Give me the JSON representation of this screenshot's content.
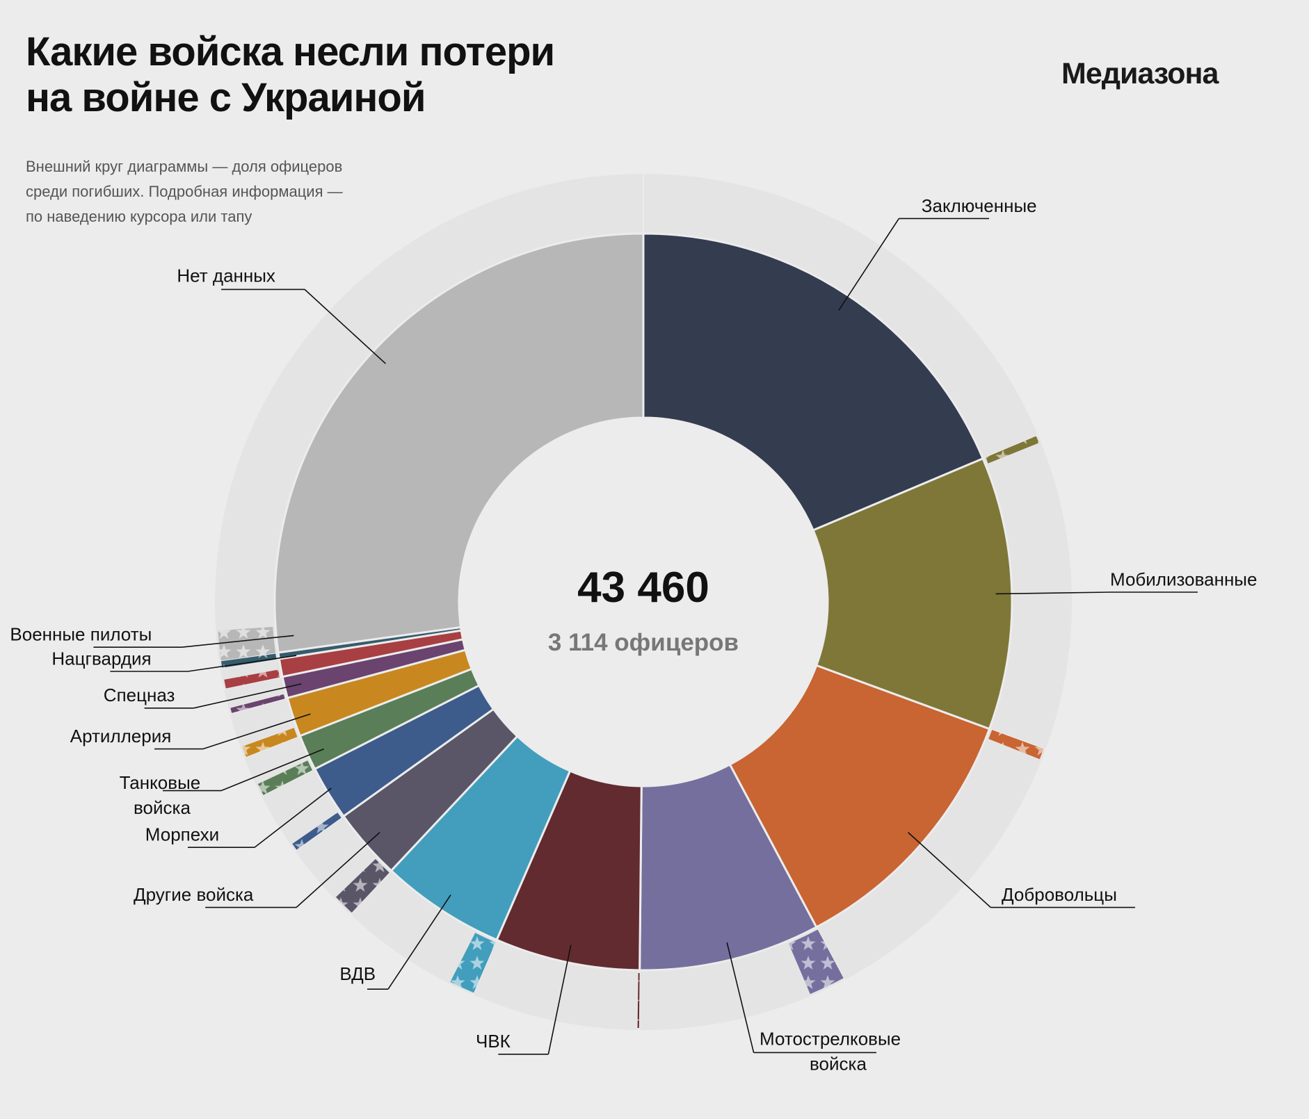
{
  "header": {
    "title_line1": "Какие войска несли потери",
    "title_line2": "на войне с Украиной",
    "logo": "Медиазона",
    "subtitle_line1": "Внешний круг диаграммы — доля офицеров",
    "subtitle_line2": "среди погибших. Подробная информация —",
    "subtitle_line3": "по наведению курсора или тапу"
  },
  "center": {
    "total": "43 460",
    "officers": "3 114 офицеров"
  },
  "chart_data": {
    "type": "pie",
    "subtype": "donut with outer officer-share ring",
    "total": 43460,
    "officers_total": 3114,
    "direction": "clockwise from top",
    "categories": [
      "Заключенные",
      "Мобилизованные",
      "Добровольцы",
      "Мотострелковые войска",
      "ЧВК",
      "ВДВ",
      "Другие войска",
      "Морпехи",
      "Танковые войска",
      "Артиллерия",
      "Спецназ",
      "Нацгвардия",
      "Военные пилоты",
      "Нет данных"
    ],
    "series": [
      {
        "name": "погибшие",
        "values": [
          8100,
          5200,
          5050,
          3450,
          2760,
          2380,
          1360,
          1040,
          680,
          750,
          410,
          340,
          120,
          11820
        ]
      },
      {
        "name": "офицеры",
        "values": [
          10,
          120,
          180,
          600,
          25,
          420,
          360,
          120,
          200,
          180,
          85,
          145,
          180,
          489
        ]
      }
    ],
    "colors": [
      "#343c50",
      "#7f7738",
      "#c96433",
      "#756f9e",
      "#622b30",
      "#429ebc",
      "#5a5668",
      "#3d5c8c",
      "#5a7e58",
      "#c8881f",
      "#6a436e",
      "#a83f43",
      "#365c6c",
      "#b7b7b7"
    ],
    "label_lines": [
      [
        "Заключенные"
      ],
      [
        "Мобилизованные"
      ],
      [
        "Добровольцы"
      ],
      [
        "Мотострелковые",
        "войска"
      ],
      [
        "ЧВК"
      ],
      [
        "ВДВ"
      ],
      [
        "Другие войска"
      ],
      [
        "Морпехи"
      ],
      [
        "Танковые",
        "войска"
      ],
      [
        "Артиллерия"
      ],
      [
        "Спецназ"
      ],
      [
        "Нацгвардия"
      ],
      [
        "Военные пилоты"
      ],
      [
        "Нет данных"
      ]
    ]
  }
}
